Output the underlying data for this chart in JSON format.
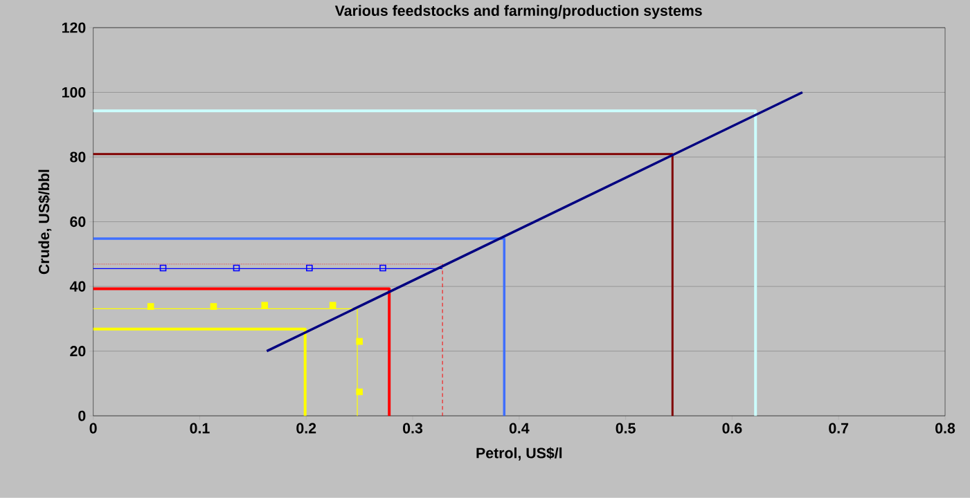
{
  "chart_data": {
    "type": "line",
    "title": "Various feedstocks and farming/production systems",
    "xlabel": "Petrol, US$/l",
    "ylabel": "Crude, US$/bbl",
    "xlim": [
      0,
      0.8
    ],
    "ylim": [
      0,
      120
    ],
    "xticks": [
      0,
      0.1,
      0.2,
      0.3,
      0.4,
      0.5,
      0.6,
      0.7,
      0.8
    ],
    "yticks": [
      0,
      20,
      40,
      60,
      80,
      100,
      120
    ],
    "grid": "y",
    "marker": "none",
    "series": [
      {
        "color": "#ccffff",
        "x": [
          0,
          0.622,
          0.622
        ],
        "values": [
          94.3,
          94.3,
          0
        ]
      },
      {
        "color": "#800000",
        "x": [
          0,
          0.544,
          0.544
        ],
        "values": [
          80.9,
          80.9,
          0
        ]
      },
      {
        "color": "#3f6fff",
        "x": [
          0,
          0.386,
          0.386
        ],
        "values": [
          54.8,
          54.8,
          0
        ]
      },
      {
        "color": "#0000ff",
        "x": [
          0,
          0.328
        ],
        "values": [
          45.5,
          45.5
        ]
      },
      {
        "type": "scatter",
        "color": "#0000ff",
        "marker": "square",
        "x": [
          0.0656,
          0.1345,
          0.203,
          0.272
        ],
        "values": [
          45.7,
          45.7,
          45.7,
          45.7
        ]
      },
      {
        "color": "#ff0000",
        "line_style": "dotted",
        "x": [
          0,
          0.328
        ],
        "values": [
          46.9,
          46.9
        ]
      },
      {
        "color": "#ff0000",
        "line_style": "dashed",
        "x": [
          0.328,
          0.328
        ],
        "values": [
          46.9,
          0
        ]
      },
      {
        "color": "#ff0000",
        "x": [
          0,
          0.278,
          0.278
        ],
        "values": [
          39.3,
          39.3,
          0
        ]
      },
      {
        "color": "#ffff00",
        "x": [
          0,
          0.248,
          0.248
        ],
        "values": [
          33.1,
          33.1,
          0
        ]
      },
      {
        "type": "scatter",
        "color": "#ffff00",
        "marker": "square",
        "x": [
          0.054,
          0.113,
          0.161,
          0.225,
          0.25,
          0.25
        ],
        "values": [
          33.8,
          33.8,
          34.2,
          34.2,
          23.0,
          7.4
        ]
      },
      {
        "color": "#ffff00",
        "x": [
          0,
          0.199,
          0.199
        ],
        "values": [
          26.8,
          26.8,
          0
        ]
      },
      {
        "color": "#000080",
        "x": [
          0.163,
          0.666
        ],
        "values": [
          20,
          100
        ]
      }
    ]
  }
}
